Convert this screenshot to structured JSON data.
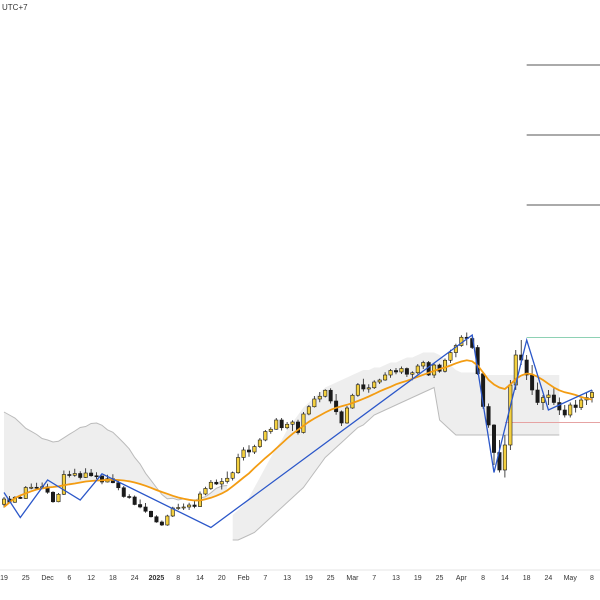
{
  "header": {
    "timezone": "UTC+7"
  },
  "colors": {
    "up_fill": "#f4d03f",
    "down_fill": "#1a1a1a",
    "wick": "#1a1a1a",
    "ma": "#f39c12",
    "band_fill": "#eeeeee",
    "band_edge": "#bbbbbb",
    "zigzag": "#2b57c9",
    "level": "#555555",
    "green_level": "#8ed1b4",
    "red_level": "#e6a3a3",
    "axis_line": "#e5e5e5"
  },
  "chart_data": {
    "type": "candlestick",
    "title": "",
    "xlabel": "",
    "ylabel": "",
    "x_tick_labels": [
      {
        "label": "19",
        "index": 0
      },
      {
        "label": "25",
        "index": 4
      },
      {
        "label": "Dec",
        "index": 8
      },
      {
        "label": "6",
        "index": 12
      },
      {
        "label": "12",
        "index": 16
      },
      {
        "label": "18",
        "index": 20
      },
      {
        "label": "24",
        "index": 24
      },
      {
        "label": "2025",
        "index": 28,
        "bold": true
      },
      {
        "label": "8",
        "index": 32
      },
      {
        "label": "14",
        "index": 36
      },
      {
        "label": "20",
        "index": 40
      },
      {
        "label": "Feb",
        "index": 44
      },
      {
        "label": "7",
        "index": 48
      },
      {
        "label": "13",
        "index": 52
      },
      {
        "label": "19",
        "index": 56
      },
      {
        "label": "25",
        "index": 60
      },
      {
        "label": "Mar",
        "index": 64
      },
      {
        "label": "7",
        "index": 68
      },
      {
        "label": "13",
        "index": 72
      },
      {
        "label": "19",
        "index": 76
      },
      {
        "label": "25",
        "index": 80
      },
      {
        "label": "Apr",
        "index": 84
      },
      {
        "label": "8",
        "index": 88
      },
      {
        "label": "14",
        "index": 92
      },
      {
        "label": "18",
        "index": 96
      },
      {
        "label": "24",
        "index": 100
      },
      {
        "label": "May",
        "index": 104
      },
      {
        "label": "8",
        "index": 108
      }
    ],
    "ohlc": [
      [
        14.3,
        17.2,
        13.0,
        16.4
      ],
      [
        16.4,
        17.6,
        14.8,
        15.1
      ],
      [
        15.1,
        17.5,
        14.9,
        17.1
      ],
      [
        17.1,
        17.8,
        16.4,
        16.6
      ],
      [
        16.6,
        21.6,
        16.4,
        21.0
      ],
      [
        21.0,
        22.6,
        20.3,
        21.1
      ],
      [
        21.1,
        22.9,
        20.0,
        20.8
      ],
      [
        20.8,
        23.0,
        20.5,
        21.3
      ],
      [
        21.3,
        22.5,
        18.5,
        19.1
      ],
      [
        19.1,
        19.5,
        14.9,
        15.3
      ],
      [
        15.3,
        18.8,
        15.1,
        18.3
      ],
      [
        18.3,
        27.8,
        18.0,
        26.2
      ],
      [
        26.2,
        27.7,
        25.0,
        25.9
      ],
      [
        25.9,
        28.5,
        25.3,
        26.6
      ],
      [
        26.6,
        27.5,
        24.2,
        25.0
      ],
      [
        25.0,
        28.7,
        24.8,
        26.8
      ],
      [
        26.8,
        28.4,
        25.3,
        25.7
      ],
      [
        25.7,
        27.1,
        24.4,
        25.6
      ],
      [
        25.6,
        25.8,
        22.3,
        23.2
      ],
      [
        23.2,
        26.1,
        23.0,
        24.5
      ],
      [
        24.5,
        26.3,
        22.7,
        22.9
      ],
      [
        22.9,
        24.1,
        19.9,
        20.9
      ],
      [
        20.9,
        21.6,
        16.9,
        17.4
      ],
      [
        17.4,
        18.3,
        16.5,
        17.2
      ],
      [
        17.2,
        17.8,
        13.9,
        14.2
      ],
      [
        14.2,
        16.2,
        12.7,
        13.2
      ],
      [
        13.2,
        14.8,
        10.9,
        11.5
      ],
      [
        11.5,
        11.7,
        9.0,
        9.3
      ],
      [
        9.3,
        9.9,
        6.9,
        7.2
      ],
      [
        7.2,
        7.8,
        5.6,
        6.0
      ],
      [
        6.0,
        10.1,
        5.7,
        9.6
      ],
      [
        9.6,
        13.3,
        9.2,
        12.8
      ],
      [
        12.8,
        14.5,
        12.0,
        13.0
      ],
      [
        13.0,
        14.6,
        12.0,
        13.2
      ],
      [
        13.2,
        14.9,
        12.0,
        14.0
      ],
      [
        14.0,
        16.1,
        12.7,
        13.4
      ],
      [
        13.4,
        19.4,
        13.2,
        18.4
      ],
      [
        18.4,
        21.3,
        17.9,
        20.6
      ],
      [
        20.6,
        24.0,
        20.0,
        23.1
      ],
      [
        23.1,
        24.2,
        22.0,
        22.4
      ],
      [
        22.4,
        24.8,
        20.2,
        23.4
      ],
      [
        23.4,
        27.4,
        22.6,
        24.7
      ],
      [
        24.7,
        27.4,
        23.8,
        26.9
      ],
      [
        26.9,
        34.5,
        26.5,
        33.0
      ],
      [
        33.0,
        37.1,
        31.8,
        36.0
      ],
      [
        36.0,
        37.9,
        33.3,
        35.2
      ],
      [
        35.2,
        38.1,
        34.4,
        37.4
      ],
      [
        37.4,
        40.8,
        36.8,
        40.0
      ],
      [
        40.0,
        44.0,
        39.5,
        43.4
      ],
      [
        43.4,
        45.1,
        42.5,
        44.3
      ],
      [
        44.3,
        48.8,
        44.1,
        48.0
      ],
      [
        48.0,
        48.8,
        43.8,
        44.9
      ],
      [
        44.9,
        47.2,
        44.3,
        46.3
      ],
      [
        46.3,
        47.9,
        43.6,
        47.2
      ],
      [
        47.2,
        48.1,
        42.2,
        43.0
      ],
      [
        43.0,
        51.2,
        42.6,
        50.4
      ],
      [
        50.4,
        54.0,
        49.9,
        53.3
      ],
      [
        53.3,
        57.6,
        53.0,
        56.4
      ],
      [
        56.4,
        59.2,
        55.1,
        57.5
      ],
      [
        57.5,
        60.3,
        57.0,
        59.9
      ],
      [
        59.9,
        60.7,
        54.6,
        55.6
      ],
      [
        55.6,
        58.4,
        50.1,
        51.3
      ],
      [
        51.3,
        51.8,
        45.6,
        46.8
      ],
      [
        46.8,
        53.6,
        46.5,
        52.8
      ],
      [
        52.8,
        58.5,
        52.5,
        57.9
      ],
      [
        57.9,
        62.8,
        57.3,
        62.1
      ],
      [
        62.1,
        64.5,
        59.4,
        60.4
      ],
      [
        60.4,
        62.3,
        58.9,
        60.9
      ],
      [
        60.9,
        63.9,
        60.4,
        63.2
      ],
      [
        63.2,
        64.5,
        62.4,
        64.0
      ],
      [
        64.0,
        67.1,
        63.7,
        66.0
      ],
      [
        66.0,
        68.4,
        64.9,
        67.8
      ],
      [
        67.8,
        68.8,
        66.3,
        67.2
      ],
      [
        67.2,
        69.4,
        66.4,
        68.6
      ],
      [
        68.6,
        69.0,
        65.2,
        66.3
      ],
      [
        66.3,
        67.5,
        63.9,
        66.9
      ],
      [
        66.9,
        70.4,
        66.3,
        69.6
      ],
      [
        69.6,
        71.7,
        68.4,
        71.0
      ],
      [
        71.0,
        71.6,
        65.6,
        66.0
      ],
      [
        66.0,
        70.6,
        64.8,
        70.0
      ],
      [
        70.0,
        70.5,
        66.9,
        67.5
      ],
      [
        67.5,
        72.6,
        67.0,
        71.9
      ],
      [
        71.9,
        76.1,
        70.8,
        75.0
      ],
      [
        75.0,
        78.5,
        73.1,
        77.8
      ],
      [
        77.8,
        81.9,
        77.3,
        81.1
      ],
      [
        81.1,
        83.0,
        77.9,
        80.6
      ],
      [
        80.6,
        81.4,
        76.4,
        77.0
      ],
      [
        77.0,
        78.0,
        66.0,
        66.5
      ],
      [
        66.5,
        67.2,
        52.5,
        53.4
      ],
      [
        53.4,
        54.6,
        44.9,
        46.0
      ],
      [
        46.0,
        46.3,
        30.0,
        35.0
      ],
      [
        35.0,
        40.0,
        27.0,
        28.0
      ],
      [
        28.0,
        42.0,
        25.0,
        38.0
      ],
      [
        38.0,
        64.0,
        36.0,
        62.0
      ],
      [
        62.0,
        76.0,
        60.0,
        74.0
      ],
      [
        74.0,
        80.0,
        70.0,
        72.0
      ],
      [
        72.0,
        74.0,
        64.0,
        66.0
      ],
      [
        66.0,
        70.0,
        58.0,
        60.0
      ],
      [
        60.0,
        63.0,
        54.0,
        55.0
      ],
      [
        55.0,
        58.0,
        52.0,
        57.0
      ],
      [
        57.0,
        60.0,
        54.0,
        58.0
      ],
      [
        58.0,
        61.0,
        54.0,
        55.0
      ],
      [
        55.0,
        57.0,
        50.0,
        52.0
      ],
      [
        52.0,
        54.0,
        49.0,
        50.0
      ],
      [
        50.0,
        55.0,
        49.0,
        54.0
      ],
      [
        54.0,
        56.0,
        51.0,
        53.0
      ],
      [
        53.0,
        57.0,
        52.0,
        56.0
      ],
      [
        56.0,
        59.0,
        54.0,
        57.0
      ],
      [
        57.0,
        60.0,
        55.0,
        59.0
      ]
    ],
    "moving_average": [
      13.2,
      15.0,
      16.8,
      17.8,
      18.7,
      19.5,
      20.2,
      20.6,
      21.0,
      21.2,
      21.5,
      21.9,
      22.3,
      22.6,
      23.0,
      23.4,
      23.6,
      23.8,
      23.9,
      24.1,
      24.1,
      24.0,
      23.8,
      23.5,
      23.0,
      22.4,
      21.7,
      20.9,
      20.0,
      19.2,
      18.5,
      17.7,
      17.0,
      16.5,
      16.1,
      15.8,
      15.8,
      16.3,
      16.9,
      17.7,
      18.6,
      19.8,
      21.5,
      23.2,
      25.0,
      26.7,
      28.8,
      30.8,
      32.8,
      34.6,
      36.6,
      38.6,
      40.6,
      42.5,
      44.1,
      45.7,
      47.3,
      48.6,
      49.8,
      51.0,
      52.1,
      52.9,
      53.5,
      54.1,
      54.8,
      55.6,
      56.5,
      57.4,
      58.4,
      59.5,
      60.4,
      61.3,
      62.3,
      63.0,
      63.7,
      64.5,
      65.3,
      66.1,
      66.9,
      67.7,
      68.4,
      69.0,
      69.8,
      70.7,
      71.4,
      71.9,
      71.5,
      69.8,
      67.0,
      64.0,
      62.2,
      61.0,
      60.4,
      62.2,
      64.4,
      65.8,
      66.6,
      66.3,
      65.3,
      64.0,
      62.5,
      61.0,
      59.9,
      59.1,
      58.6,
      58.0,
      57.2,
      56.6,
      56.2
    ],
    "band_upper": [
      38,
      35,
      32,
      29,
      26,
      24,
      22,
      20,
      19,
      18,
      18,
      19,
      20,
      21,
      22,
      22,
      23,
      23,
      22,
      20,
      19,
      17,
      15,
      13,
      10,
      8,
      5,
      3,
      1,
      -1,
      -2,
      -1,
      -1,
      0,
      0,
      0,
      1,
      1,
      2,
      3,
      3,
      2,
      null,
      null,
      null,
      null,
      null,
      null,
      null,
      null,
      null,
      null,
      null,
      null,
      null,
      null,
      null,
      null,
      null,
      null,
      null,
      null,
      null,
      null,
      null,
      null,
      null,
      null,
      null,
      null,
      null,
      null,
      null,
      null,
      null,
      null,
      null,
      null,
      null,
      null,
      null,
      null,
      null,
      null,
      null,
      null,
      null,
      null,
      null,
      null,
      null,
      null,
      null,
      null,
      null,
      null,
      null,
      null,
      null,
      null,
      null,
      null,
      null,
      null,
      null,
      null,
      null,
      null,
      null
    ],
    "band2_upper": [
      null,
      null,
      null,
      null,
      null,
      null,
      null,
      null,
      null,
      null,
      null,
      null,
      null,
      null,
      null,
      null,
      null,
      null,
      null,
      null,
      null,
      null,
      null,
      null,
      null,
      null,
      null,
      null,
      null,
      null,
      null,
      null,
      null,
      null,
      null,
      null,
      null,
      null,
      null,
      null,
      null,
      null,
      10,
      12,
      14,
      17,
      21,
      25,
      29,
      33,
      37,
      40,
      44,
      47,
      50,
      53,
      55,
      57,
      59,
      61,
      62,
      63,
      64,
      65,
      66,
      67,
      68,
      68,
      69,
      69,
      70,
      71,
      71,
      72,
      73,
      73,
      74,
      75,
      75,
      75,
      74,
      72,
      70,
      68,
      67,
      67,
      67,
      67,
      66,
      66,
      66,
      66,
      66,
      66,
      66,
      66,
      66,
      66,
      66,
      66,
      66,
      66,
      66
    ],
    "band2_lower": [
      null,
      null,
      null,
      null,
      null,
      null,
      null,
      null,
      null,
      null,
      null,
      null,
      null,
      null,
      null,
      null,
      null,
      null,
      null,
      null,
      null,
      null,
      null,
      null,
      null,
      null,
      null,
      null,
      null,
      null,
      null,
      null,
      null,
      null,
      null,
      null,
      null,
      null,
      null,
      null,
      null,
      null,
      0,
      0,
      1,
      2,
      3,
      5,
      7,
      9,
      11,
      13,
      15,
      17,
      19,
      21,
      24,
      27,
      30,
      33,
      35,
      37,
      39,
      41,
      43,
      45,
      46,
      48,
      50,
      51,
      52,
      53,
      54,
      55,
      56,
      57,
      58,
      59,
      60,
      61,
      48,
      46,
      44,
      42,
      42,
      42,
      42,
      42,
      42,
      42,
      42,
      42,
      42,
      42,
      42,
      42,
      42,
      42,
      42,
      42,
      42,
      42,
      42
    ],
    "zigzag": [
      {
        "index": 0,
        "price": 19.0
      },
      {
        "index": 3,
        "price": 9.0
      },
      {
        "index": 8,
        "price": 24.0
      },
      {
        "index": 14,
        "price": 16.0
      },
      {
        "index": 18,
        "price": 26.5
      },
      {
        "index": 38,
        "price": 5.0
      },
      {
        "index": 86,
        "price": 82.0
      },
      {
        "index": 90,
        "price": 27.0
      },
      {
        "index": 96,
        "price": 80.0
      },
      {
        "index": 100,
        "price": 52.0
      },
      {
        "index": 108,
        "price": 60.0
      }
    ],
    "horizontal_levels": [
      {
        "price": 190.0,
        "from_index": 96,
        "kind": "level"
      },
      {
        "price": 162.0,
        "from_index": 96,
        "kind": "level"
      },
      {
        "price": 134.0,
        "from_index": 96,
        "kind": "level"
      },
      {
        "price": 81.0,
        "from_index": 96,
        "kind": "green"
      },
      {
        "price": 47.0,
        "from_index": 92,
        "kind": "red"
      }
    ],
    "ylim": [
      0,
      200
    ],
    "grid": false
  }
}
